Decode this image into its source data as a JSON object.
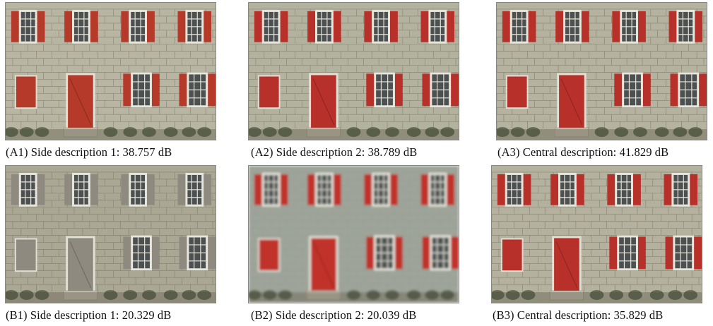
{
  "figure": {
    "panels": [
      {
        "caption": "(A1) Side description 1: 38.757 dB",
        "shutter_color": "#b53a2a",
        "wall_color": "#b8b5a2",
        "brick_opacity": 0.55,
        "blur": 0
      },
      {
        "caption": "(A2) Side description 2: 38.789 dB",
        "shutter_color": "#b8302a",
        "wall_color": "#b3b29f",
        "brick_opacity": 0.55,
        "blur": 0
      },
      {
        "caption": "(A3) Central description: 41.829 dB",
        "shutter_color": "#b8302a",
        "wall_color": "#b5b3a0",
        "brick_opacity": 0.6,
        "blur": 0
      },
      {
        "caption": "(B1) Side description 1: 20.329 dB",
        "shutter_color": "#8f8a80",
        "wall_color": "#aba795",
        "brick_opacity": 0.55,
        "blur": 0
      },
      {
        "caption": "(B2) Side description 2: 20.039 dB",
        "shutter_color": "#c0302a",
        "wall_color": "#9ea49a",
        "brick_opacity": 0.15,
        "blur": 1.6
      },
      {
        "caption": "(B3) Central description: 35.829 dB",
        "shutter_color": "#b8302a",
        "wall_color": "#b4b19e",
        "brick_opacity": 0.55,
        "blur": 0
      }
    ]
  }
}
